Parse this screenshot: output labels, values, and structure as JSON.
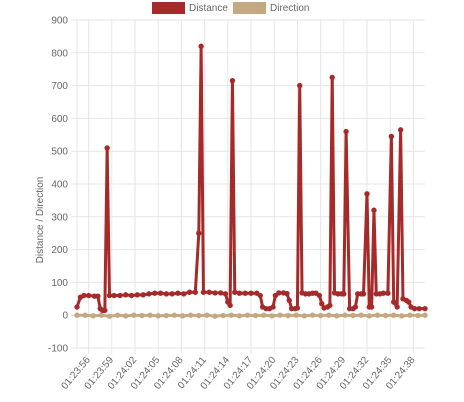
{
  "colors": {
    "distance": "#a52a2a",
    "direction": "#c4a882",
    "grid": "#e6e6e6",
    "tick_text": "#666666"
  },
  "chart_data": {
    "type": "line",
    "ylabel": "Distance / Direction",
    "xlabel": "",
    "ylim": [
      -100,
      900
    ],
    "yticks": [
      -100,
      0,
      100,
      200,
      300,
      400,
      500,
      600,
      700,
      800,
      900
    ],
    "xtick_labels": [
      "01:23:56",
      "01:23:59",
      "01:24:02",
      "01:24:05",
      "01:24:08",
      "01:24:11",
      "01:24:14",
      "01:24:17",
      "01:24:20",
      "01:24:23",
      "01:24:26",
      "01:24:29",
      "01:24:32",
      "01:24:35",
      "01:24:38"
    ],
    "grid": true,
    "legend_position": "top-center",
    "series": [
      {
        "name": "Distance",
        "points": [
          [
            0.0,
            25
          ],
          [
            0.3,
            55
          ],
          [
            0.6,
            60
          ],
          [
            1.0,
            60
          ],
          [
            1.5,
            58
          ],
          [
            1.8,
            58
          ],
          [
            2.0,
            20
          ],
          [
            2.2,
            15
          ],
          [
            2.4,
            15
          ],
          [
            2.6,
            510
          ],
          [
            2.8,
            60
          ],
          [
            3.2,
            60
          ],
          [
            3.7,
            60
          ],
          [
            4.2,
            62
          ],
          [
            4.7,
            60
          ],
          [
            5.2,
            62
          ],
          [
            5.7,
            62
          ],
          [
            6.2,
            65
          ],
          [
            6.7,
            67
          ],
          [
            7.2,
            67
          ],
          [
            7.7,
            65
          ],
          [
            8.2,
            65
          ],
          [
            8.7,
            67
          ],
          [
            9.2,
            65
          ],
          [
            9.7,
            70
          ],
          [
            10.2,
            70
          ],
          [
            10.5,
            250
          ],
          [
            10.7,
            820
          ],
          [
            10.9,
            70
          ],
          [
            11.4,
            70
          ],
          [
            11.9,
            68
          ],
          [
            12.4,
            68
          ],
          [
            12.8,
            65
          ],
          [
            13.0,
            40
          ],
          [
            13.2,
            30
          ],
          [
            13.4,
            715
          ],
          [
            13.6,
            70
          ],
          [
            14.0,
            67
          ],
          [
            14.5,
            67
          ],
          [
            15.0,
            67
          ],
          [
            15.5,
            67
          ],
          [
            15.8,
            60
          ],
          [
            16.0,
            25
          ],
          [
            16.3,
            20
          ],
          [
            16.6,
            20
          ],
          [
            16.9,
            25
          ],
          [
            17.1,
            60
          ],
          [
            17.4,
            68
          ],
          [
            17.8,
            68
          ],
          [
            18.1,
            66
          ],
          [
            18.3,
            45
          ],
          [
            18.5,
            20
          ],
          [
            18.8,
            20
          ],
          [
            19.0,
            22
          ],
          [
            19.2,
            700
          ],
          [
            19.4,
            68
          ],
          [
            19.7,
            65
          ],
          [
            20.0,
            65
          ],
          [
            20.3,
            67
          ],
          [
            20.6,
            67
          ],
          [
            20.9,
            60
          ],
          [
            21.1,
            35
          ],
          [
            21.3,
            22
          ],
          [
            21.6,
            25
          ],
          [
            21.8,
            30
          ],
          [
            22.0,
            725
          ],
          [
            22.2,
            68
          ],
          [
            22.5,
            65
          ],
          [
            22.8,
            65
          ],
          [
            23.0,
            65
          ],
          [
            23.2,
            560
          ],
          [
            23.5,
            20
          ],
          [
            23.8,
            20
          ],
          [
            24.0,
            25
          ],
          [
            24.2,
            65
          ],
          [
            24.5,
            65
          ],
          [
            24.7,
            65
          ],
          [
            25.0,
            370
          ],
          [
            25.2,
            25
          ],
          [
            25.4,
            25
          ],
          [
            25.6,
            320
          ],
          [
            25.8,
            65
          ],
          [
            26.1,
            65
          ],
          [
            26.4,
            67
          ],
          [
            26.8,
            67
          ],
          [
            27.1,
            545
          ],
          [
            27.3,
            40
          ],
          [
            27.6,
            25
          ],
          [
            27.9,
            565
          ],
          [
            28.1,
            50
          ],
          [
            28.4,
            45
          ],
          [
            28.6,
            40
          ],
          [
            28.8,
            25
          ],
          [
            29.1,
            20
          ],
          [
            29.5,
            20
          ],
          [
            30.0,
            20
          ]
        ]
      },
      {
        "name": "Direction",
        "points": [
          [
            0.0,
            0
          ],
          [
            0.7,
            0
          ],
          [
            1.4,
            -2
          ],
          [
            2.1,
            0
          ],
          [
            2.8,
            -3
          ],
          [
            3.5,
            0
          ],
          [
            4.2,
            -2
          ],
          [
            4.9,
            0
          ],
          [
            5.6,
            -1
          ],
          [
            6.3,
            0
          ],
          [
            7.0,
            -2
          ],
          [
            7.7,
            -1
          ],
          [
            8.4,
            0
          ],
          [
            9.1,
            -2
          ],
          [
            9.8,
            0
          ],
          [
            10.5,
            -1
          ],
          [
            11.2,
            0
          ],
          [
            11.9,
            -3
          ],
          [
            12.6,
            -1
          ],
          [
            13.3,
            0
          ],
          [
            14.0,
            -2
          ],
          [
            14.7,
            0
          ],
          [
            15.4,
            -1
          ],
          [
            16.1,
            0
          ],
          [
            16.8,
            -2
          ],
          [
            17.5,
            0
          ],
          [
            18.2,
            -1
          ],
          [
            18.9,
            0
          ],
          [
            19.6,
            -2
          ],
          [
            20.3,
            0
          ],
          [
            21.0,
            -1
          ],
          [
            21.7,
            0
          ],
          [
            22.4,
            -2
          ],
          [
            23.1,
            0
          ],
          [
            23.8,
            -1
          ],
          [
            24.5,
            0
          ],
          [
            25.2,
            -2
          ],
          [
            25.9,
            0
          ],
          [
            26.6,
            -1
          ],
          [
            27.3,
            0
          ],
          [
            28.0,
            -2
          ],
          [
            28.7,
            0
          ],
          [
            29.4,
            -1
          ],
          [
            30.0,
            0
          ]
        ]
      }
    ]
  }
}
